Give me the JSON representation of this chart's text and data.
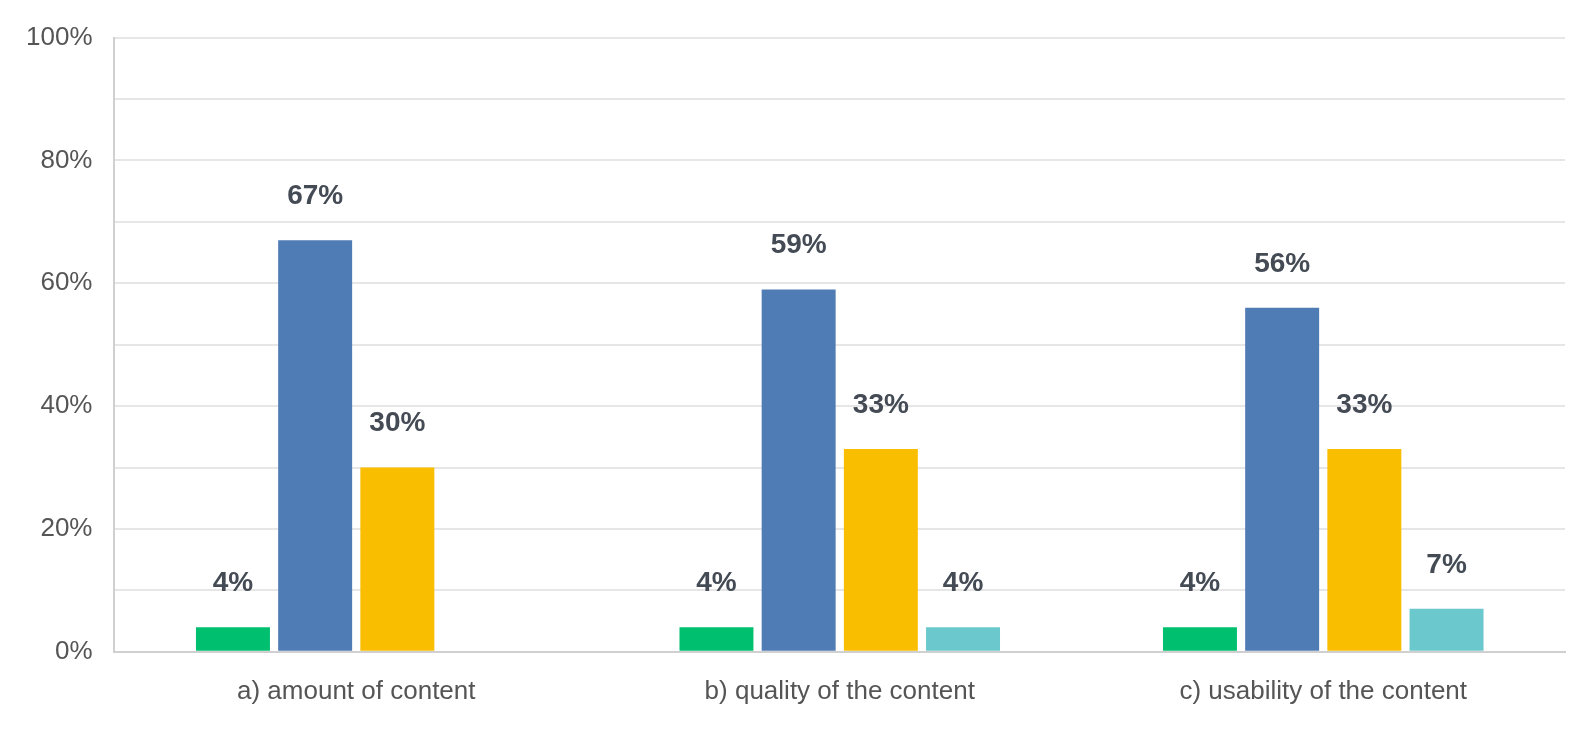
{
  "chart_data": {
    "type": "bar",
    "categories": [
      "a) amount of content",
      "b) quality of the content",
      "c) usability of the content"
    ],
    "series": [
      {
        "color": "#00bf6f",
        "values": [
          4,
          4,
          4
        ],
        "value_labels": [
          "4%",
          "4%",
          "4%"
        ]
      },
      {
        "color": "#507cb6",
        "values": [
          67,
          59,
          56
        ],
        "value_labels": [
          "67%",
          "59%",
          "56%"
        ]
      },
      {
        "color": "#f9be00",
        "values": [
          30,
          33,
          33
        ],
        "value_labels": [
          "30%",
          "33%",
          "33%"
        ]
      },
      {
        "color": "#6bc8cd",
        "values": [
          null,
          4,
          7
        ],
        "value_labels": [
          null,
          "4%",
          "7%"
        ]
      }
    ],
    "ylim": [
      0,
      100
    ],
    "yticks": [
      {
        "value": 0,
        "label": "0%"
      },
      {
        "value": 10,
        "label": null
      },
      {
        "value": 20,
        "label": "20%"
      },
      {
        "value": 30,
        "label": null
      },
      {
        "value": 40,
        "label": "40%"
      },
      {
        "value": 50,
        "label": null
      },
      {
        "value": 60,
        "label": "60%"
      },
      {
        "value": 70,
        "label": null
      },
      {
        "value": 80,
        "label": "80%"
      },
      {
        "value": 90,
        "label": null
      },
      {
        "value": 100,
        "label": "100%"
      }
    ],
    "grid": "y"
  }
}
